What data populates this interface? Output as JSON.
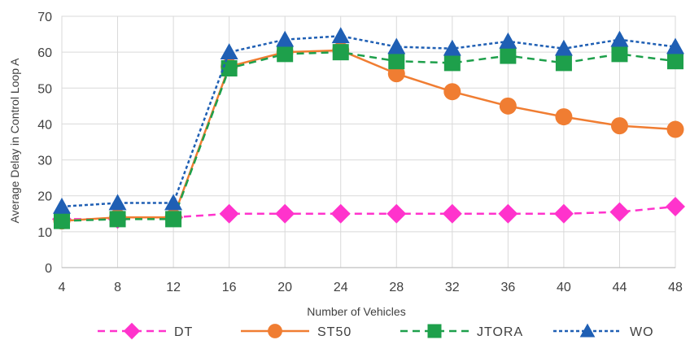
{
  "chart_data": {
    "type": "line",
    "title": "",
    "xlabel": "Number  of Vehicles",
    "ylabel": "Average Delay in Control Loop A",
    "x": [
      4,
      8,
      12,
      16,
      20,
      24,
      28,
      32,
      36,
      40,
      44,
      48
    ],
    "x_tick_labels": [
      "4",
      "8",
      "12",
      "16",
      "20",
      "24",
      "28",
      "32",
      "36",
      "40",
      "44",
      "48"
    ],
    "ylim": [
      0,
      70
    ],
    "y_ticks": [
      0,
      10,
      20,
      30,
      40,
      50,
      60,
      70
    ],
    "y_tick_labels": [
      "0",
      "10",
      "20",
      "30",
      "40",
      "50",
      "60",
      "70"
    ],
    "grid": true,
    "legend_position": "bottom",
    "series": [
      {
        "name": "DT",
        "color": "#ff33cc",
        "dash": "dashed",
        "marker": "diamond",
        "values": [
          13.5,
          13.5,
          14,
          15,
          15,
          15,
          15,
          15,
          15,
          15,
          15.5,
          17
        ]
      },
      {
        "name": "ST50",
        "color": "#f07d32",
        "dash": "solid",
        "marker": "circle",
        "values": [
          13,
          14,
          14,
          56,
          60,
          60.5,
          54,
          49,
          45,
          42,
          39.5,
          38.5
        ]
      },
      {
        "name": "JTORA",
        "color": "#1ea04b",
        "dash": "dashed",
        "marker": "square",
        "values": [
          13,
          13.5,
          13.5,
          55.5,
          59.5,
          60,
          57.5,
          57,
          59,
          57,
          59.5,
          57.5
        ]
      },
      {
        "name": "WO",
        "color": "#1f5fb4",
        "dash": "dotted",
        "marker": "triangle",
        "values": [
          17,
          18,
          18,
          60,
          63.5,
          64.5,
          61.5,
          61,
          63,
          61,
          63.5,
          61.5
        ]
      }
    ]
  }
}
